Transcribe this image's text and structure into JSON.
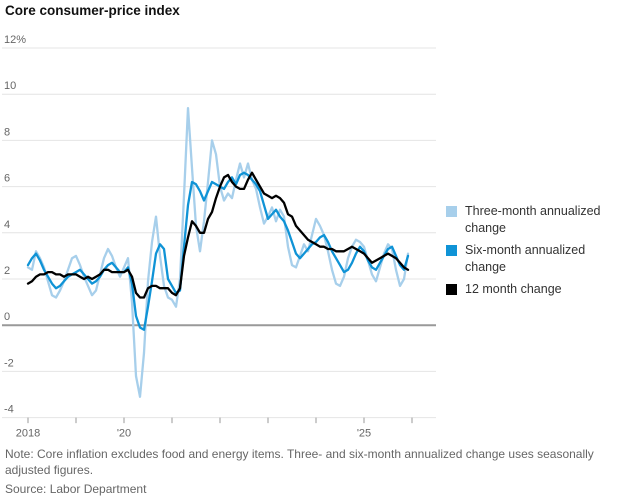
{
  "title": "Core consumer-price index",
  "note": "Note: Core inflation excludes food and energy items. Three- and six-month annualized change uses seasonally adjusted figures.",
  "source": "Source: Labor Department",
  "colors": {
    "three_month": "#a7cfeb",
    "six_month": "#0f93d6",
    "twelve_month": "#000000",
    "gridline": "#e4e4e4",
    "zero_line": "#999999",
    "tick": "#999999",
    "axis_text": "#666666"
  },
  "legend": [
    {
      "label": "Three-month annualized change",
      "color": "#a7cfeb"
    },
    {
      "label": "Six-month annualized change",
      "color": "#0f93d6"
    },
    {
      "label": "12 month change",
      "color": "#000000"
    }
  ],
  "chart_data": {
    "type": "line",
    "title": "Core consumer-price index",
    "xlabel": "",
    "ylabel": "",
    "grid": true,
    "legend_position": "right",
    "x_axis": {
      "start_year": 2018,
      "points_per_year": 12,
      "tick_years": [
        2018,
        2019,
        2020,
        2021,
        2022,
        2023,
        2024,
        2025,
        2026
      ],
      "tick_labels": [
        {
          "year": 2018,
          "text": "2018"
        },
        {
          "year": 2020,
          "text": "'20"
        },
        {
          "year": 2025,
          "text": "'25"
        }
      ]
    },
    "y_axis": {
      "min": -4,
      "max": 12,
      "step": 2,
      "gridlines": [
        {
          "value": 12,
          "label": "12%"
        },
        {
          "value": 10,
          "label": "10"
        },
        {
          "value": 8,
          "label": "8"
        },
        {
          "value": 6,
          "label": "6"
        },
        {
          "value": 4,
          "label": "4"
        },
        {
          "value": 2,
          "label": "2"
        },
        {
          "value": 0,
          "label": "0"
        },
        {
          "value": -2,
          "label": "-2"
        },
        {
          "value": -4,
          "label": "-4"
        }
      ]
    },
    "series": [
      {
        "name": "Three-month annualized change",
        "color": "#a7cfeb",
        "values": [
          2.5,
          2.4,
          3.2,
          2.9,
          2.5,
          1.9,
          1.3,
          1.2,
          1.5,
          1.9,
          2.4,
          2.9,
          3.0,
          2.6,
          2.1,
          1.7,
          1.3,
          1.5,
          2.2,
          2.9,
          3.3,
          3.0,
          2.5,
          2.1,
          2.5,
          2.9,
          1.0,
          -2.2,
          -3.1,
          -1.2,
          1.9,
          3.6,
          4.7,
          3.0,
          1.7,
          1.2,
          1.1,
          0.8,
          2.0,
          5.6,
          9.4,
          6.8,
          4.3,
          3.2,
          4.5,
          6.2,
          8.0,
          7.4,
          6.0,
          5.4,
          5.7,
          5.5,
          6.3,
          7.0,
          6.4,
          7.0,
          6.3,
          5.9,
          5.1,
          4.4,
          4.7,
          5.1,
          4.5,
          5.0,
          4.7,
          3.4,
          2.6,
          2.5,
          3.0,
          3.5,
          3.2,
          3.9,
          4.6,
          4.3,
          3.9,
          3.2,
          2.4,
          1.8,
          1.7,
          2.1,
          2.9,
          3.4,
          3.7,
          3.6,
          3.4,
          2.8,
          2.2,
          1.9,
          2.5,
          3.1,
          3.5,
          3.3,
          2.4,
          1.7,
          2.0,
          3.1
        ]
      },
      {
        "name": "Six-month annualized change",
        "color": "#0f93d6",
        "values": [
          2.6,
          2.9,
          3.1,
          2.8,
          2.4,
          2.1,
          1.8,
          1.6,
          1.7,
          1.9,
          2.1,
          2.2,
          2.3,
          2.4,
          2.2,
          2.0,
          1.8,
          1.9,
          2.1,
          2.4,
          2.6,
          2.7,
          2.5,
          2.3,
          2.3,
          2.5,
          1.8,
          0.4,
          -0.1,
          -0.2,
          0.8,
          1.9,
          3.1,
          3.5,
          3.3,
          2.0,
          1.7,
          1.4,
          1.5,
          3.4,
          5.2,
          6.2,
          6.1,
          5.8,
          5.4,
          5.8,
          6.2,
          6.1,
          6.0,
          5.9,
          6.2,
          6.4,
          6.1,
          6.5,
          6.6,
          6.5,
          6.3,
          6.1,
          5.8,
          5.2,
          4.6,
          4.8,
          5.0,
          4.7,
          4.5,
          4.1,
          3.6,
          3.1,
          2.9,
          3.1,
          3.3,
          3.5,
          3.6,
          3.8,
          3.9,
          3.6,
          3.2,
          2.9,
          2.6,
          2.3,
          2.4,
          2.7,
          3.1,
          3.4,
          3.2,
          2.8,
          2.5,
          2.4,
          2.7,
          3.0,
          3.3,
          3.4,
          3.0,
          2.6,
          2.4,
          3.0
        ]
      },
      {
        "name": "12 month change",
        "color": "#000000",
        "values": [
          1.8,
          1.9,
          2.1,
          2.2,
          2.2,
          2.3,
          2.3,
          2.2,
          2.2,
          2.1,
          2.2,
          2.2,
          2.2,
          2.1,
          2.0,
          2.1,
          2.0,
          2.1,
          2.2,
          2.4,
          2.4,
          2.3,
          2.3,
          2.3,
          2.3,
          2.4,
          2.1,
          1.4,
          1.2,
          1.2,
          1.6,
          1.7,
          1.7,
          1.6,
          1.6,
          1.6,
          1.4,
          1.3,
          1.6,
          3.0,
          3.8,
          4.5,
          4.3,
          4.0,
          4.0,
          4.6,
          4.9,
          5.5,
          6.0,
          6.4,
          6.5,
          6.2,
          6.0,
          5.9,
          5.9,
          6.3,
          6.6,
          6.3,
          6.0,
          5.7,
          5.6,
          5.5,
          5.6,
          5.5,
          5.3,
          4.8,
          4.7,
          4.3,
          4.1,
          3.9,
          3.7,
          3.6,
          3.5,
          3.4,
          3.4,
          3.3,
          3.3,
          3.2,
          3.2,
          3.2,
          3.3,
          3.4,
          3.3,
          3.2,
          3.1,
          2.9,
          2.7,
          2.8,
          2.9,
          3.0,
          3.1,
          3.0,
          2.9,
          2.7,
          2.5,
          2.4
        ]
      }
    ]
  }
}
